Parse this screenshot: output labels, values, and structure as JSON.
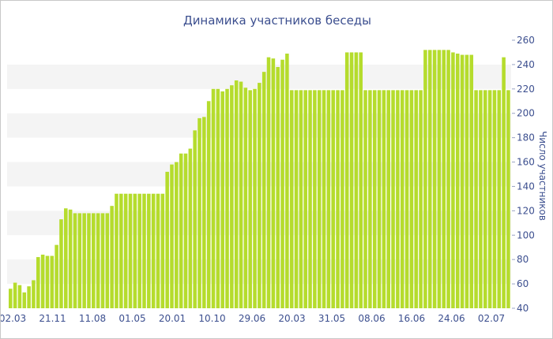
{
  "chart_data": {
    "type": "bar",
    "title": "Динамика участников беседы",
    "xlabel": "",
    "ylabel": "Число участников",
    "ylim": [
      40,
      260
    ],
    "yticks": [
      40,
      60,
      80,
      100,
      120,
      140,
      160,
      180,
      200,
      220,
      240,
      260
    ],
    "x_tick_labels": [
      "02.03",
      "21.11",
      "11.08",
      "01.05",
      "20.01",
      "10.10",
      "29.06",
      "20.03",
      "31.05",
      "08.06",
      "16.06",
      "24.06",
      "02.07"
    ],
    "bar_color": "#b5dc2d",
    "band_color": "#f4f4f4",
    "text_color": "#3c4f8f",
    "values": [
      56,
      61,
      59,
      53,
      58,
      63,
      82,
      84,
      83,
      83,
      92,
      113,
      122,
      121,
      118,
      118,
      118,
      118,
      118,
      118,
      118,
      118,
      124,
      134,
      134,
      134,
      134,
      134,
      134,
      134,
      134,
      134,
      134,
      134,
      152,
      158,
      160,
      167,
      167,
      171,
      186,
      196,
      197,
      210,
      220,
      220,
      218,
      220,
      223,
      227,
      226,
      221,
      219,
      220,
      225,
      234,
      246,
      245,
      238,
      244,
      249,
      219,
      219,
      219,
      219,
      219,
      219,
      219,
      219,
      219,
      219,
      219,
      219,
      250,
      250,
      250,
      250,
      219,
      219,
      219,
      219,
      219,
      219,
      219,
      219,
      219,
      219,
      219,
      219,
      219,
      252,
      252,
      252,
      252,
      252,
      252,
      250,
      249,
      248,
      248,
      248,
      219,
      219,
      219,
      219,
      219,
      219,
      246,
      219
    ]
  }
}
